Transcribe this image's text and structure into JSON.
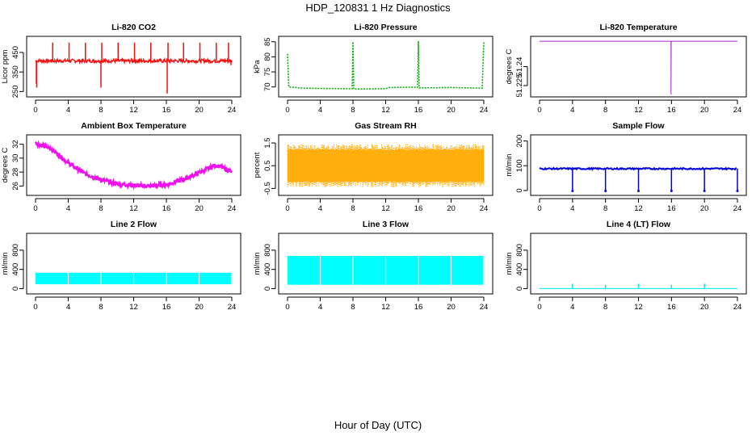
{
  "figure": {
    "title": "HDP_120831  1 Hz Diagnostics",
    "xlabel": "Hour of Day (UTC)"
  },
  "chart_data": [
    {
      "id": "co2",
      "type": "line",
      "title": "Li-820 CO2",
      "ylabel": "Licor ppm",
      "color": "#ee1111",
      "xlim": [
        0,
        24
      ],
      "ylim": [
        235,
        520
      ],
      "xticks": [
        0,
        4,
        8,
        12,
        16,
        20,
        24
      ],
      "yticks": [
        250,
        350,
        450
      ],
      "style": "noisy",
      "base": 407,
      "noise": 9,
      "spikes": [
        {
          "x": 0.1,
          "y": 290
        },
        {
          "x": 0.15,
          "y": 270
        },
        {
          "x": 2.1,
          "y": 500
        },
        {
          "x": 4.1,
          "y": 500
        },
        {
          "x": 6.1,
          "y": 500
        },
        {
          "x": 8.0,
          "y": 270
        },
        {
          "x": 8.1,
          "y": 500
        },
        {
          "x": 10.1,
          "y": 500
        },
        {
          "x": 12.1,
          "y": 500
        },
        {
          "x": 14.1,
          "y": 500
        },
        {
          "x": 16.1,
          "y": 240
        },
        {
          "x": 16.2,
          "y": 500
        },
        {
          "x": 18.1,
          "y": 500
        },
        {
          "x": 20.1,
          "y": 500
        },
        {
          "x": 22.1,
          "y": 500
        },
        {
          "x": 23.6,
          "y": 500
        },
        {
          "x": 23.9,
          "y": 385
        }
      ]
    },
    {
      "id": "pressure",
      "type": "line",
      "title": "Li-820 Pressure",
      "ylabel": "kPa",
      "color": "#00aa00",
      "xlim": [
        0,
        24
      ],
      "ylim": [
        67.5,
        86
      ],
      "xticks": [
        0,
        4,
        8,
        12,
        16,
        20,
        24
      ],
      "yticks": [
        70,
        75,
        80,
        85
      ],
      "style": "dotted",
      "points": [
        [
          0,
          81
        ],
        [
          0.15,
          70
        ],
        [
          2,
          69.6
        ],
        [
          4,
          69.5
        ],
        [
          7.9,
          69.4
        ],
        [
          8.0,
          85
        ],
        [
          8.1,
          69.3
        ],
        [
          12,
          69.4
        ],
        [
          12.3,
          69.8
        ],
        [
          15.9,
          69.9
        ],
        [
          16.0,
          85.2
        ],
        [
          16.1,
          69.7
        ],
        [
          20,
          69.8
        ],
        [
          23.8,
          69.6
        ],
        [
          24,
          85
        ]
      ]
    },
    {
      "id": "li_temp",
      "type": "line",
      "title": "Li-820 Temperature",
      "ylabel": "degrees C",
      "color": "#aa22cc",
      "xlim": [
        0,
        24
      ],
      "ylim": [
        51.218,
        51.262
      ],
      "xticks": [
        0,
        4,
        8,
        12,
        16,
        20,
        24
      ],
      "yticks": [
        51.225,
        51.24
      ],
      "style": "line",
      "points": [
        [
          0,
          51.26
        ],
        [
          15.95,
          51.26
        ],
        [
          15.95,
          51.218
        ],
        [
          15.97,
          51.26
        ],
        [
          24,
          51.26
        ]
      ]
    },
    {
      "id": "box_temp",
      "type": "line",
      "title": "Ambient Box Temperature",
      "ylabel": "degrees C",
      "color": "#ee11ee",
      "xlim": [
        0,
        24
      ],
      "ylim": [
        25,
        33
      ],
      "xticks": [
        0,
        4,
        8,
        12,
        16,
        20,
        24
      ],
      "yticks": [
        26,
        28,
        30,
        32
      ],
      "style": "band",
      "width": 0.6,
      "points": [
        [
          0,
          32.2
        ],
        [
          2,
          31.3
        ],
        [
          4,
          29.3
        ],
        [
          6,
          27.8
        ],
        [
          8,
          26.9
        ],
        [
          10,
          26.3
        ],
        [
          12,
          26.1
        ],
        [
          14,
          26.0
        ],
        [
          16,
          26.2
        ],
        [
          18,
          26.9
        ],
        [
          20,
          27.9
        ],
        [
          22,
          29.0
        ],
        [
          23,
          28.6
        ],
        [
          24,
          28.0
        ]
      ]
    },
    {
      "id": "rh",
      "type": "line",
      "title": "Gas Stream RH",
      "ylabel": "percent",
      "color": "#ffaa00",
      "xlim": [
        0,
        24
      ],
      "ylim": [
        -0.7,
        1.75
      ],
      "xticks": [
        0,
        4,
        8,
        12,
        16,
        20,
        24
      ],
      "yticks": [
        -0.5,
        0.5,
        1.5
      ],
      "style": "fill-noise",
      "low": -0.45,
      "high": 1.45,
      "core_low": -0.2,
      "core_high": 1.2
    },
    {
      "id": "sample_flow",
      "type": "line",
      "title": "Sample Flow",
      "ylabel": "ml/min",
      "color": "#0000dd",
      "xlim": [
        0,
        24
      ],
      "ylim": [
        -10,
        215
      ],
      "xticks": [
        0,
        4,
        8,
        12,
        16,
        20,
        24
      ],
      "yticks": [
        0,
        100,
        200
      ],
      "style": "flow",
      "base": 88,
      "dips": [
        4,
        8,
        12,
        16,
        20,
        24
      ]
    },
    {
      "id": "line2",
      "type": "line",
      "title": "Line 2 Flow",
      "ylabel": "ml/min",
      "color": "#00ffff",
      "xlim": [
        0,
        24
      ],
      "ylim": [
        -60,
        1100
      ],
      "xticks": [
        0,
        4,
        8,
        12,
        16,
        20,
        24
      ],
      "yticks": [
        0,
        400,
        800
      ],
      "style": "block",
      "low": 90,
      "high": 330,
      "gaps": [
        4,
        8,
        12,
        16,
        20
      ]
    },
    {
      "id": "line3",
      "type": "line",
      "title": "Line 3 Flow",
      "ylabel": "ml/min",
      "color": "#00ffff",
      "xlim": [
        0,
        24
      ],
      "ylim": [
        -60,
        1100
      ],
      "xticks": [
        0,
        4,
        8,
        12,
        16,
        20,
        24
      ],
      "yticks": [
        0,
        400,
        800
      ],
      "style": "block",
      "low": 80,
      "high": 680,
      "gaps": [
        4,
        8,
        12,
        16,
        20
      ]
    },
    {
      "id": "line4",
      "type": "line",
      "title": "Line 4 (LT) Flow",
      "ylabel": "ml/min",
      "color": "#00e5ee",
      "xlim": [
        0,
        24
      ],
      "ylim": [
        -60,
        1100
      ],
      "xticks": [
        0,
        4,
        8,
        12,
        16,
        20,
        24
      ],
      "yticks": [
        0,
        400,
        800
      ],
      "style": "flat-spikes",
      "base": 0,
      "spikes": [
        {
          "x": 4,
          "y": 100
        },
        {
          "x": 8,
          "y": 80
        },
        {
          "x": 12,
          "y": 100
        },
        {
          "x": 16,
          "y": 80
        },
        {
          "x": 20,
          "y": 100
        }
      ]
    }
  ]
}
